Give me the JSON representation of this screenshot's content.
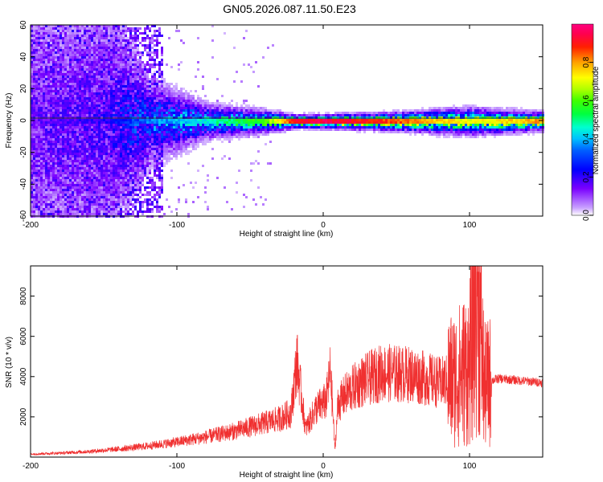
{
  "title": "GN05.2026.087.11.50.E23",
  "chart_data": [
    {
      "type": "heatmap",
      "xlabel": "Height of straight line (km)",
      "ylabel": "Frequency (Hz)",
      "xlim": [
        -200,
        150
      ],
      "ylim": [
        -60,
        60
      ],
      "xticks": [
        -200,
        -100,
        0,
        100
      ],
      "yticks": [
        -60,
        -40,
        -20,
        0,
        20,
        40,
        60
      ],
      "colorbar": {
        "label": "Normalized spectral amplitude",
        "range": [
          0,
          1
        ],
        "ticks": [
          0.0,
          0.2,
          0.4,
          0.6,
          0.8
        ]
      },
      "band_center_hz": 0,
      "description_points": [
        {
          "x": -200,
          "spread_hz": 60,
          "amplitude": 0.15
        },
        {
          "x": -150,
          "spread_hz": 60,
          "amplitude": 0.2
        },
        {
          "x": -120,
          "spread_hz": 20,
          "amplitude": 0.35
        },
        {
          "x": -80,
          "spread_hz": 8,
          "amplitude": 0.45
        },
        {
          "x": -40,
          "spread_hz": 5,
          "amplitude": 0.6
        },
        {
          "x": -20,
          "spread_hz": 3,
          "amplitude": 0.9
        },
        {
          "x": 0,
          "spread_hz": 3,
          "amplitude": 0.95
        },
        {
          "x": 50,
          "spread_hz": 4,
          "amplitude": 0.85
        },
        {
          "x": 100,
          "spread_hz": 6,
          "amplitude": 0.7
        },
        {
          "x": 150,
          "spread_hz": 4,
          "amplitude": 0.8
        }
      ]
    },
    {
      "type": "line",
      "xlabel": "Height of straight line (km)",
      "ylabel": "SNR (10 * v/v)",
      "xlim": [
        -200,
        150
      ],
      "ylim": [
        0,
        9500
      ],
      "xticks": [
        -200,
        -100,
        0,
        100
      ],
      "yticks": [
        2000,
        4000,
        6000,
        8000
      ],
      "color": "#f03030",
      "series": [
        {
          "name": "SNR",
          "x": [
            -200,
            -180,
            -160,
            -140,
            -120,
            -100,
            -80,
            -60,
            -40,
            -30,
            -22,
            -18,
            -12,
            -5,
            2,
            5,
            8,
            10,
            15,
            25,
            40,
            60,
            80,
            90,
            100,
            105,
            110,
            115,
            120,
            135,
            150
          ],
          "y": [
            150,
            200,
            280,
            400,
            550,
            750,
            1000,
            1300,
            1700,
            1900,
            2200,
            4800,
            1400,
            2400,
            2800,
            4300,
            350,
            2600,
            3100,
            3700,
            4200,
            4100,
            3700,
            3900,
            4500,
            9300,
            3500,
            3800,
            3900,
            3800,
            3700
          ]
        }
      ]
    }
  ]
}
